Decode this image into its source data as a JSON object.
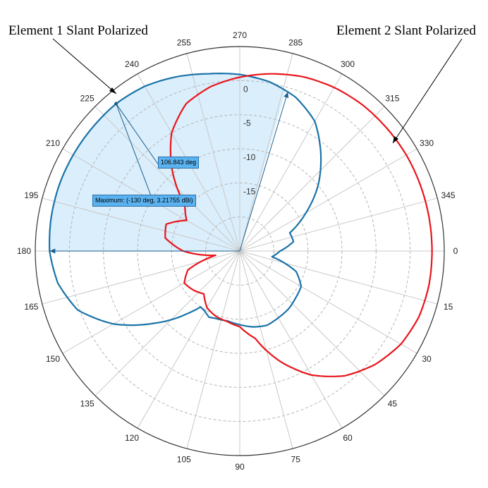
{
  "annotations": {
    "element1": "Element 1 Slant Polarized",
    "element2": "Element 2 Slant Polarized"
  },
  "tooltips": {
    "angle_span": "106.843 deg",
    "maximum": "Maximum: (-130 deg, 3.21755 dBi)"
  },
  "colors": {
    "element1": "#1a73a8",
    "element2": "#e8151b",
    "highlight_fill": "#dbeefb",
    "grid": "#c8c8c8",
    "outer_ring": "#333333"
  },
  "chart_data": {
    "type": "polar-line",
    "angle_unit": "deg",
    "angle_direction": "clockwise",
    "zero_angle_direction": "east",
    "angle_ticks": [
      0,
      15,
      30,
      45,
      60,
      75,
      90,
      105,
      120,
      135,
      150,
      165,
      180,
      195,
      210,
      225,
      240,
      255,
      270,
      285,
      300,
      315,
      330,
      345
    ],
    "radial_ticks": [
      0,
      -5,
      -10,
      -15
    ],
    "radial_range_dBi": [
      -25,
      5
    ],
    "series": [
      {
        "name": "Element 1 Slant Polarized",
        "color": "#1a73a8",
        "points": [
          [
            0,
            -19.1
          ],
          [
            10,
            -20.2
          ],
          [
            20,
            -16.2
          ],
          [
            30,
            -14.6
          ],
          [
            40,
            -14.3
          ],
          [
            50,
            -13.9
          ],
          [
            60,
            -13.7
          ],
          [
            70,
            -13.4
          ],
          [
            80,
            -13.7
          ],
          [
            90,
            -14.2
          ],
          [
            100,
            -14.6
          ],
          [
            110,
            -14.5
          ],
          [
            115,
            -14.3
          ],
          [
            120,
            -14.8
          ],
          [
            125,
            -15.0
          ],
          [
            130,
            -13.0
          ],
          [
            140,
            -8.5
          ],
          [
            150,
            -3.6
          ],
          [
            160,
            0.3
          ],
          [
            170,
            2.1
          ],
          [
            180,
            2.9
          ],
          [
            190,
            3.1
          ],
          [
            200,
            3.2
          ],
          [
            210,
            3.21
          ],
          [
            220,
            3.2
          ],
          [
            230,
            3.21755
          ],
          [
            240,
            2.9
          ],
          [
            250,
            2.2
          ],
          [
            260,
            1.4
          ],
          [
            270,
            0.9
          ],
          [
            280,
            0.2
          ],
          [
            290,
            -1.0
          ],
          [
            300,
            -3.0
          ],
          [
            310,
            -6.5
          ],
          [
            320,
            -10.0
          ],
          [
            330,
            -13.8
          ],
          [
            340,
            -17.2
          ],
          [
            350,
            -17.0
          ]
        ]
      },
      {
        "name": "Element 2 Slant Polarized",
        "color": "#e8151b",
        "points": [
          [
            0,
            3.2
          ],
          [
            10,
            3.2
          ],
          [
            20,
            3.0
          ],
          [
            30,
            2.3
          ],
          [
            40,
            0.9
          ],
          [
            50,
            -1.1
          ],
          [
            60,
            -4.0
          ],
          [
            70,
            -7.8
          ],
          [
            80,
            -12.0
          ],
          [
            90,
            -13.9
          ],
          [
            100,
            -14.5
          ],
          [
            110,
            -14.8
          ],
          [
            120,
            -15.4
          ],
          [
            130,
            -16.8
          ],
          [
            140,
            -16.1
          ],
          [
            150,
            -15.6
          ],
          [
            160,
            -16.9
          ],
          [
            170,
            -21.4
          ],
          [
            180,
            -16.7
          ],
          [
            190,
            -13.9
          ],
          [
            200,
            -13.5
          ],
          [
            210,
            -16.0
          ],
          [
            220,
            -14.5
          ],
          [
            230,
            -9.6
          ],
          [
            240,
            -5.0
          ],
          [
            250,
            -2.0
          ],
          [
            260,
            -0.5
          ],
          [
            270,
            0.5
          ],
          [
            280,
            1.4
          ],
          [
            290,
            2.2
          ],
          [
            300,
            2.7
          ],
          [
            310,
            3.0
          ],
          [
            320,
            3.1
          ],
          [
            330,
            3.2
          ],
          [
            340,
            3.2
          ],
          [
            350,
            3.2
          ]
        ]
      }
    ],
    "markers": {
      "highlight_span_deg": [
        180,
        286.8
      ],
      "maximum_angle_deg": 230,
      "maximum_value_dBi": 3.21755
    }
  }
}
